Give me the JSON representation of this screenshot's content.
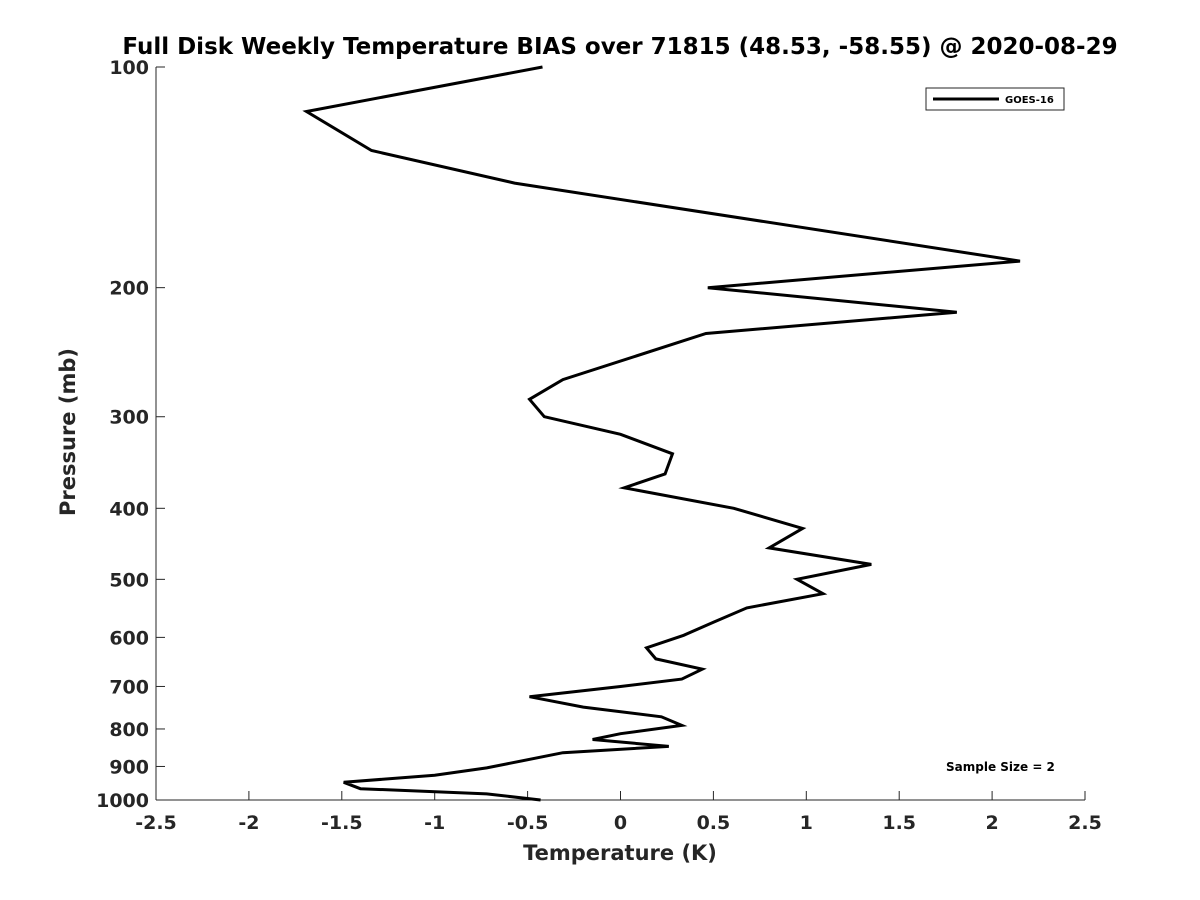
{
  "chart_data": {
    "type": "line",
    "title": "Full Disk Weekly Temperature BIAS over 71815 (48.53, -58.55) @ 2020-08-29",
    "xlabel": "Temperature (K)",
    "ylabel": "Pressure (mb)",
    "xlim": [
      -2.5,
      2.5
    ],
    "ylim": [
      100,
      1000
    ],
    "y_scale": "log",
    "y_reversed": true,
    "x_ticks": [
      "-2.5",
      "-2",
      "-1.5",
      "-1",
      "-0.5",
      "0",
      "0.5",
      "1",
      "1.5",
      "2",
      "2.5"
    ],
    "y_ticks": [
      "100",
      "200",
      "300",
      "400",
      "500",
      "600",
      "700",
      "800",
      "900",
      "1000"
    ],
    "grid": false,
    "legend_position": "top-right",
    "annotation": "Sample Size = 2",
    "colors": {
      "line": "#000000",
      "axes": "#262626",
      "background": "#ffffff"
    },
    "series": [
      {
        "name": "GOES-16",
        "points": [
          [
            -0.42,
            100
          ],
          [
            -1.69,
            115
          ],
          [
            -1.34,
            130
          ],
          [
            -0.57,
            144
          ],
          [
            2.15,
            184
          ],
          [
            0.47,
            200
          ],
          [
            1.81,
            216
          ],
          [
            0.46,
            231
          ],
          [
            -0.31,
            267
          ],
          [
            -0.49,
            284
          ],
          [
            -0.41,
            300
          ],
          [
            0.0,
            317
          ],
          [
            0.28,
            337
          ],
          [
            0.24,
            359
          ],
          [
            0.02,
            375
          ],
          [
            0.61,
            400
          ],
          [
            0.98,
            426
          ],
          [
            0.8,
            453
          ],
          [
            1.35,
            477
          ],
          [
            0.95,
            500
          ],
          [
            1.09,
            523
          ],
          [
            0.68,
            547
          ],
          [
            0.5,
            572
          ],
          [
            0.34,
            596
          ],
          [
            0.14,
            620
          ],
          [
            0.19,
            642
          ],
          [
            0.44,
            663
          ],
          [
            0.33,
            684
          ],
          [
            0.0,
            700
          ],
          [
            -0.49,
            723
          ],
          [
            -0.2,
            747
          ],
          [
            0.22,
            770
          ],
          [
            0.33,
            791
          ],
          [
            0.0,
            812
          ],
          [
            -0.15,
            827
          ],
          [
            0.26,
            845
          ],
          [
            -0.31,
            862
          ],
          [
            -0.72,
            904
          ],
          [
            -1.0,
            925
          ],
          [
            -1.49,
            946
          ],
          [
            -1.4,
            965
          ],
          [
            -0.72,
            981
          ],
          [
            -0.43,
            1000
          ]
        ]
      }
    ]
  }
}
